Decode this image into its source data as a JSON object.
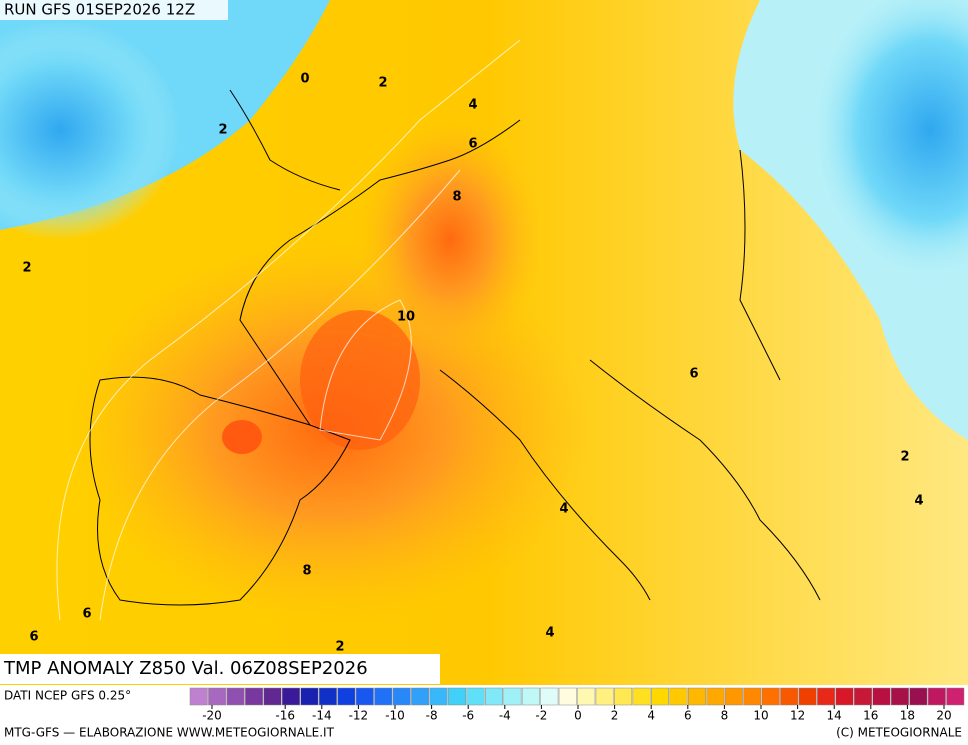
{
  "header": {
    "run": "RUN GFS 01SEP2026 12Z"
  },
  "title": "TMP ANOMALY Z850 Val. 06Z08SEP2026",
  "source": "DATI NCEP GFS 0.25°",
  "footer": {
    "left": "MTG-GFS — ELABORAZIONE WWW.METEOGIORNALE.IT",
    "right": "(C) METEOGIORNALE"
  },
  "contour_labels": [
    0,
    2,
    4,
    2,
    6,
    8,
    2,
    10,
    6,
    2,
    4,
    4,
    8,
    6,
    6,
    2,
    4
  ],
  "colorbar": {
    "ticks": [
      -20,
      -16,
      -14,
      -12,
      -10,
      -8,
      -6,
      -4,
      -2,
      0,
      2,
      4,
      6,
      8,
      10,
      12,
      14,
      16,
      18,
      20
    ],
    "colors": [
      "#c080d0",
      "#a868c0",
      "#9050b0",
      "#7838a0",
      "#602890",
      "#3a1a98",
      "#1a20b0",
      "#1030c8",
      "#1040e0",
      "#1858f0",
      "#2070f8",
      "#2888f8",
      "#30a0f8",
      "#38b8f8",
      "#40d0f8",
      "#60e0f8",
      "#80e8f8",
      "#a0f0f8",
      "#c0f8f8",
      "#e0fcf8",
      "#fffce0",
      "#fff8b0",
      "#fff080",
      "#ffe850",
      "#ffe020",
      "#ffd800",
      "#ffc800",
      "#ffb800",
      "#ffa800",
      "#ff9800",
      "#ff8800",
      "#ff7000",
      "#f85800",
      "#f04000",
      "#e82818",
      "#d81828",
      "#c81838",
      "#b81040",
      "#a81048",
      "#981050",
      "#c01860",
      "#d02070"
    ]
  }
}
